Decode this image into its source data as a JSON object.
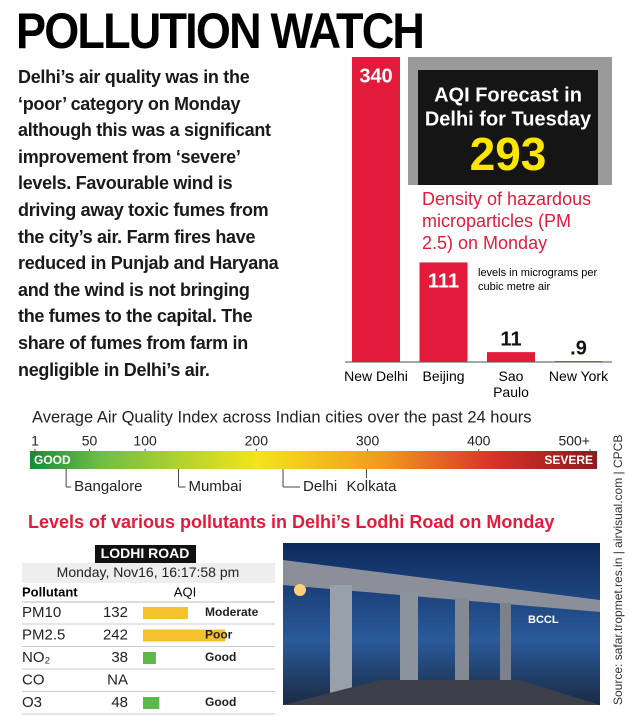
{
  "header": {
    "title": "POLLUTION WATCH"
  },
  "intro": {
    "lines": [
      "Delhi’s air quality was in the",
      "‘poor’ category on Monday",
      "although this was a significant",
      "improvement from ‘severe’",
      "levels. Favourable wind is",
      "driving away toxic fumes from",
      "the city’s air. Farm fires have",
      "reduced in Punjab and Haryana",
      "and the wind is not bringing",
      "the fumes to the capital. The",
      "share of fumes from farm in",
      "negligible in Delhi’s air."
    ]
  },
  "forecast": {
    "title_lines": [
      "AQI Forecast in",
      "Delhi for Tuesday"
    ],
    "value": 293
  },
  "chart_data": [
    {
      "type": "bar",
      "title": "Density of hazardous microparticles (PM 2.5) on Monday",
      "subtitle": "levels in micrograms per cubic metre air",
      "categories": [
        "New Delhi",
        "Beijing",
        "Sao Paulo",
        "New York"
      ],
      "values": [
        340,
        111,
        11,
        0.9
      ],
      "value_labels": [
        "340",
        "111",
        "11",
        ".9"
      ],
      "color": "#e31b3b"
    },
    {
      "type": "scale",
      "title": "Average Air Quality Index across Indian cities over the past 24 hours",
      "xlim": [
        1,
        500
      ],
      "xticks": [
        1,
        50,
        100,
        200,
        300,
        400,
        {
          "value": 500,
          "label": "500+"
        }
      ],
      "range_labels": [
        "GOOD",
        "SEVERE"
      ],
      "categories": [
        "Bangalore",
        "Mumbai",
        "Delhi",
        "Kolkata"
      ],
      "values": [
        29,
        130,
        224,
        299
      ]
    }
  ],
  "table": {
    "title": "Levels of various pollutants in Delhi’s Lodhi Road on Monday",
    "station": "LODHI ROAD",
    "timestamp": "Monday, Nov16, 16:17:58 pm",
    "columns": [
      "Pollutant",
      "AQI"
    ],
    "status_colors": {
      "Moderate": "#f5c22d",
      "Poor": "#f5c22d",
      "Good": "#5cb848"
    },
    "rows": [
      {
        "pollutant": "PM10",
        "aqi": 132,
        "status": "Moderate"
      },
      {
        "pollutant": "PM2.5",
        "aqi": 242,
        "status": "Poor"
      },
      {
        "pollutant": "NO₂",
        "aqi": 38,
        "status": "Good"
      },
      {
        "pollutant": "CO",
        "aqi": "NA"
      },
      {
        "pollutant": "O3",
        "aqi": 48,
        "status": "Good"
      }
    ]
  },
  "photo": {
    "credit": "BCCL"
  },
  "source": "Source: safar.tropmet.res.in | airvisual.com | CPCB"
}
